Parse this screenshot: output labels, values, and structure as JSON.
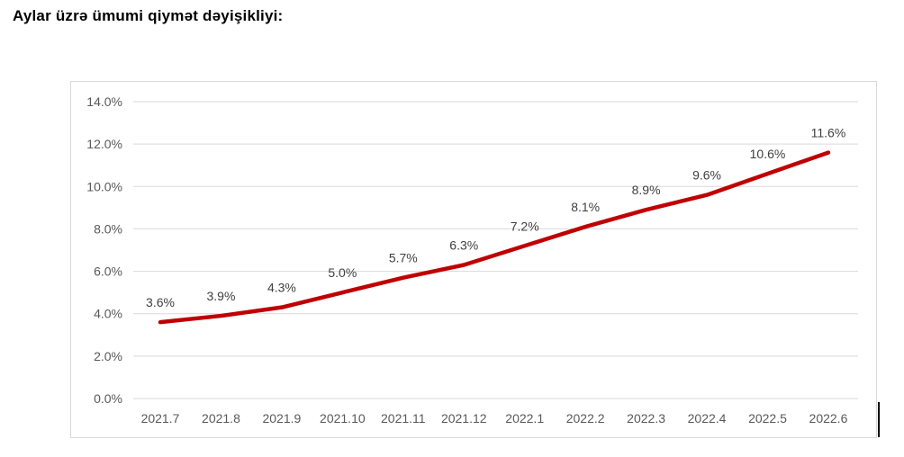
{
  "page": {
    "title": "Aylar üzrə ümumi qiymət dəyişikliyi:"
  },
  "chart_data": {
    "type": "line",
    "title": "",
    "xlabel": "",
    "ylabel": "",
    "categories": [
      "2021.7",
      "2021.8",
      "2021.9",
      "2021.10",
      "2021.11",
      "2021.12",
      "2022.1",
      "2022.2",
      "2022.3",
      "2022.4",
      "2022.5",
      "2022.6"
    ],
    "series": [
      {
        "values": [
          3.6,
          3.9,
          4.3,
          5.0,
          5.7,
          6.3,
          7.2,
          8.1,
          8.9,
          9.6,
          10.6,
          11.6
        ],
        "color": "#c00000"
      }
    ],
    "data_labels": [
      "3.6%",
      "3.9%",
      "4.3%",
      "5.0%",
      "5.7%",
      "6.3%",
      "7.2%",
      "8.1%",
      "8.9%",
      "9.6%",
      "10.6%",
      "11.6%"
    ],
    "ylim": [
      0,
      14
    ],
    "ytick_step": 2,
    "ytick_labels": [
      "0.0%",
      "2.0%",
      "4.0%",
      "6.0%",
      "8.0%",
      "10.0%",
      "12.0%",
      "14.0%"
    ],
    "grid": true,
    "legend": "none"
  },
  "colors": {
    "line": "#c00000",
    "gridline": "#d9d9d9",
    "chart_border": "#d9d9d9",
    "tick_label": "#595959",
    "data_label": "#404040",
    "title_text": "#000000",
    "caret": "#000000"
  }
}
